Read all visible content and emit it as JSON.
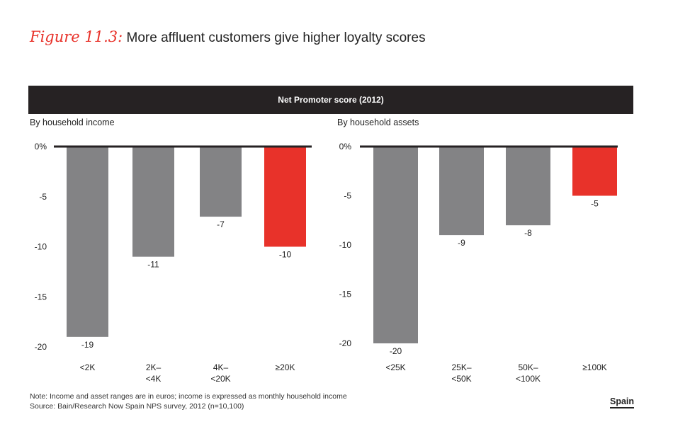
{
  "figure": {
    "label": "Figure 11.3:",
    "title": "More affluent customers give higher loyalty scores"
  },
  "banner": "Net Promoter score (2012)",
  "colors": {
    "gray": "#838385",
    "red": "#e8322a",
    "baseline": "#262223",
    "text": "#222222"
  },
  "chart_data": [
    {
      "type": "bar",
      "title": "By household income",
      "categories": [
        [
          "<2K"
        ],
        [
          "2K–",
          "<4K"
        ],
        [
          "4K–",
          "<20K"
        ],
        [
          "≥20K"
        ]
      ],
      "values": [
        -19,
        -11,
        -7,
        -10
      ],
      "value_labels": [
        "-19",
        "-11",
        "-7",
        "-10"
      ],
      "highlight": [
        false,
        false,
        false,
        true
      ],
      "yticks": [
        "0%",
        "-5",
        "-10",
        "-15",
        "-20"
      ],
      "ylim": [
        -20,
        0
      ]
    },
    {
      "type": "bar",
      "title": "By household assets",
      "categories": [
        [
          "<25K"
        ],
        [
          "25K–",
          "<50K"
        ],
        [
          "50K–",
          "<100K"
        ],
        [
          "≥100K"
        ]
      ],
      "values": [
        -20,
        -9,
        -8,
        -5
      ],
      "value_labels": [
        "-20",
        "-9",
        "-8",
        "-5"
      ],
      "highlight": [
        false,
        false,
        false,
        true
      ],
      "yticks": [
        "0%",
        "-5",
        "-10",
        "-15",
        "-20"
      ],
      "ylim": [
        -20,
        0
      ]
    }
  ],
  "notes": {
    "line1": "Note: Income and asset ranges are in euros; income is expressed as monthly household income",
    "line2": "Source: Bain/Research Now Spain NPS survey, 2012 (n=10,100)"
  },
  "region": "Spain"
}
